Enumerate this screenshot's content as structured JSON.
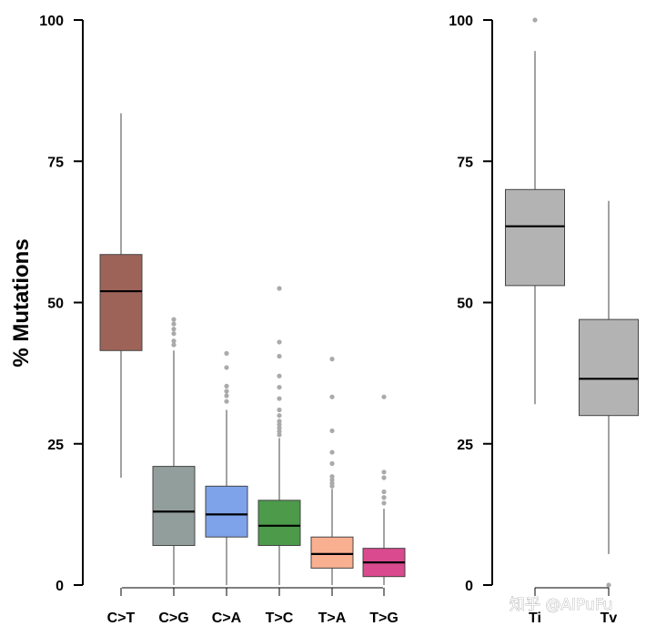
{
  "chart_data": [
    {
      "type": "box",
      "ylabel": "% Mutations",
      "ylim": [
        0,
        100
      ],
      "yticks": [
        "0",
        "25",
        "50",
        "75",
        "100"
      ],
      "categories": [
        "C>T",
        "C>G",
        "C>A",
        "T>C",
        "T>A",
        "T>G"
      ],
      "boxes": [
        {
          "label": "C>T",
          "color": "#9e6358",
          "min": 19,
          "q1": 41.5,
          "median": 52,
          "q3": 58.5,
          "max": 83.5,
          "outliers": []
        },
        {
          "label": "C>G",
          "color": "#929e9c",
          "min": 0,
          "q1": 7,
          "median": 13,
          "q3": 21,
          "max": 41.5,
          "outliers": [
            42.5,
            43.2,
            44.5,
            45.3,
            46.2,
            47
          ]
        },
        {
          "label": "C>A",
          "color": "#7ea3ea",
          "min": 0,
          "q1": 8.5,
          "median": 12.5,
          "q3": 17.5,
          "max": 31,
          "outliers": [
            32.5,
            33.5,
            34.3,
            35.2,
            38.5,
            41
          ]
        },
        {
          "label": "T>C",
          "color": "#4c9a4a",
          "min": 0,
          "q1": 7,
          "median": 10.5,
          "q3": 15,
          "max": 26,
          "outliers": [
            26.6,
            27.2,
            27.8,
            28.4,
            29,
            30,
            31,
            33,
            35,
            37,
            40.5,
            43,
            52.5
          ]
        },
        {
          "label": "T>A",
          "color": "#f9b090",
          "min": 0,
          "q1": 3,
          "median": 5.5,
          "q3": 8.5,
          "max": 17,
          "outliers": [
            17.5,
            18,
            18.6,
            19.2,
            21.5,
            23.5,
            27.3,
            33.3,
            40
          ]
        },
        {
          "label": "T>G",
          "color": "#d94a8e",
          "min": 0,
          "q1": 1.5,
          "median": 4,
          "q3": 6.5,
          "max": 13.5,
          "outliers": [
            14.5,
            15.5,
            16.5,
            19,
            20,
            33.3
          ]
        }
      ]
    },
    {
      "type": "box",
      "ylabel": "",
      "ylim": [
        0,
        100
      ],
      "yticks": [
        "0",
        "25",
        "50",
        "75",
        "100"
      ],
      "categories": [
        "Ti",
        "Tv"
      ],
      "boxes": [
        {
          "label": "Ti",
          "color": "#b3b3b3",
          "min": 32,
          "q1": 53,
          "median": 63.5,
          "q3": 70,
          "max": 94.5,
          "outliers": [
            100
          ]
        },
        {
          "label": "Tv",
          "color": "#b3b3b3",
          "min": 5.5,
          "q1": 30,
          "median": 36.5,
          "q3": 47,
          "max": 68,
          "outliers": [
            0
          ]
        }
      ]
    }
  ],
  "watermark": "知乎 @AIPuFu"
}
